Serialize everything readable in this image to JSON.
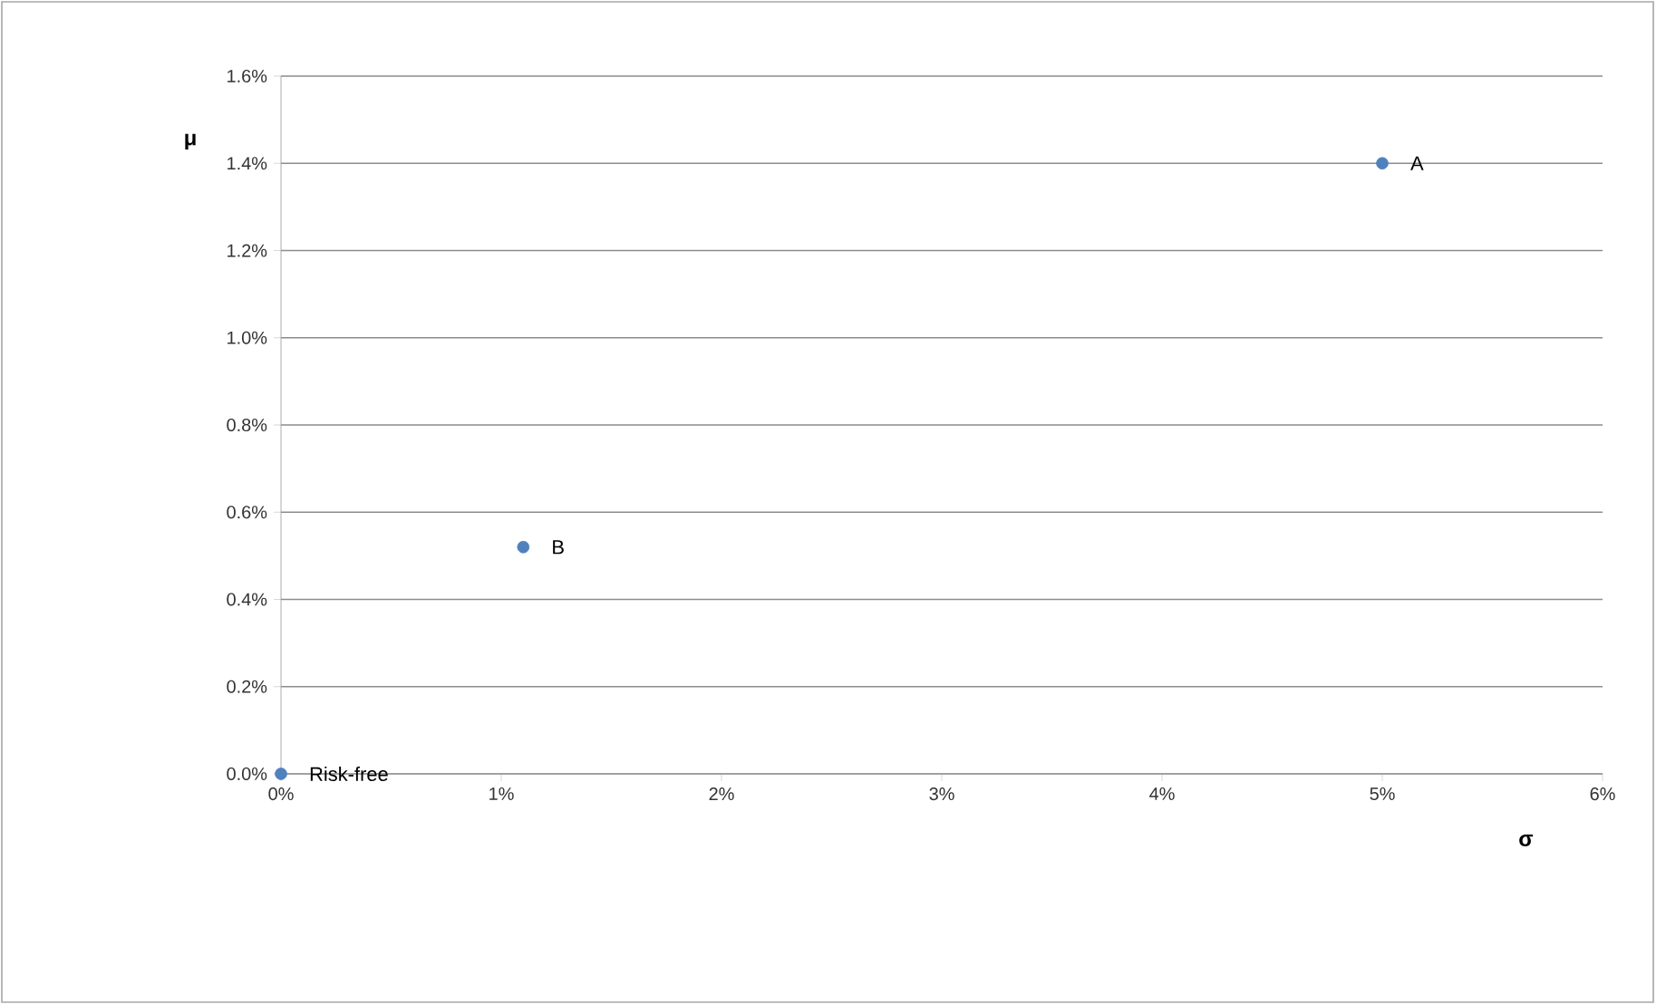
{
  "chart_data": {
    "type": "scatter",
    "xlabel": "σ",
    "ylabel": "μ",
    "x": [
      0,
      1.1,
      5.0
    ],
    "values": [
      0,
      0.52,
      1.4
    ],
    "color": "#4f81bd",
    "xlim": [
      0,
      6
    ],
    "ylim": [
      0,
      1.6
    ],
    "xticks": [
      {
        "value": 0,
        "label": "0%"
      },
      {
        "value": 1,
        "label": "1%"
      },
      {
        "value": 2,
        "label": "2%"
      },
      {
        "value": 3,
        "label": "3%"
      },
      {
        "value": 4,
        "label": "4%"
      },
      {
        "value": 5,
        "label": "5%"
      },
      {
        "value": 6,
        "label": "6%"
      }
    ],
    "yticks": [
      {
        "value": 0,
        "label": "0.0%"
      },
      {
        "value": 0.2,
        "label": "0.2%"
      },
      {
        "value": 0.4,
        "label": "0.4%"
      },
      {
        "value": 0.6,
        "label": "0.6%"
      },
      {
        "value": 0.8,
        "label": "0.8%"
      },
      {
        "value": 1.0,
        "label": "1.0%"
      },
      {
        "value": 1.2,
        "label": "1.2%"
      },
      {
        "value": 1.4,
        "label": "1.4%"
      },
      {
        "value": 1.6,
        "label": "1.6%"
      }
    ],
    "grid": "y",
    "annotations": [
      {
        "text": "Risk-free",
        "x": 0,
        "y": 0
      },
      {
        "text": "B",
        "x": 1.1,
        "y": 0.52
      },
      {
        "text": "A",
        "x": 5.0,
        "y": 1.4
      }
    ]
  }
}
